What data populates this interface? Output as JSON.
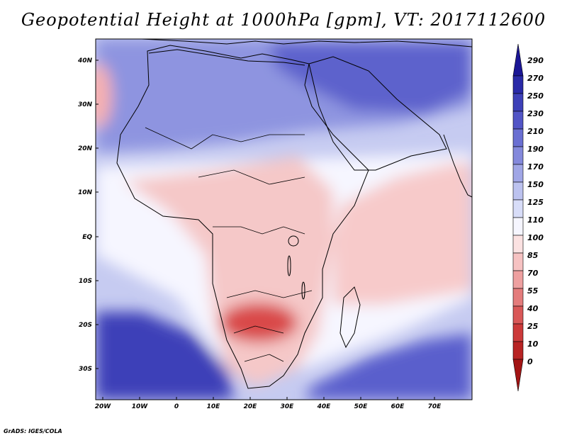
{
  "title": "Geopotential Height at 1000hPa [gpm], VT: 2017112600",
  "credit": "GrADS: IGES/COLA",
  "map": {
    "lat_labels": [
      "40N",
      "30N",
      "20N",
      "10N",
      "EQ",
      "10S",
      "20S",
      "30S"
    ],
    "lon_labels": [
      "20W",
      "10W",
      "0",
      "10E",
      "20E",
      "30E",
      "40E",
      "50E",
      "60E",
      "70E"
    ]
  },
  "colorbar": {
    "levels": [
      "290",
      "270",
      "250",
      "230",
      "210",
      "190",
      "170",
      "150",
      "125",
      "110",
      "100",
      "85",
      "70",
      "55",
      "40",
      "25",
      "10",
      "0"
    ],
    "colors": [
      "#1b1696",
      "#2a2aa8",
      "#3d40b8",
      "#5255c6",
      "#6a6fd2",
      "#8489dc",
      "#a0a6e6",
      "#bcc2ef",
      "#d8ddf8",
      "#f6f6ff",
      "#fbe2e2",
      "#f6c2c2",
      "#eea0a0",
      "#e47c7c",
      "#d95858",
      "#cc3a3a",
      "#b82424",
      "#a31414"
    ]
  },
  "fields": {
    "base_color": "#c6cbf1",
    "features": [
      {
        "name": "north-low-band",
        "color": "#8e94e0"
      },
      {
        "name": "middle-east-low",
        "color": "#5d62cc"
      },
      {
        "name": "south-atlantic-low",
        "color": "#3d40b8"
      },
      {
        "name": "southern-ocean-low",
        "color": "#5a5fcc"
      },
      {
        "name": "equatorial-ridge",
        "color": "#f6f6ff"
      },
      {
        "name": "africa-high",
        "color": "#f5c8c8"
      },
      {
        "name": "zambia-high-core",
        "color": "#d94848"
      },
      {
        "name": "indian-ocean-high",
        "color": "#f7caca"
      },
      {
        "name": "atlantic-high",
        "color": "#f6b0b0"
      }
    ]
  }
}
